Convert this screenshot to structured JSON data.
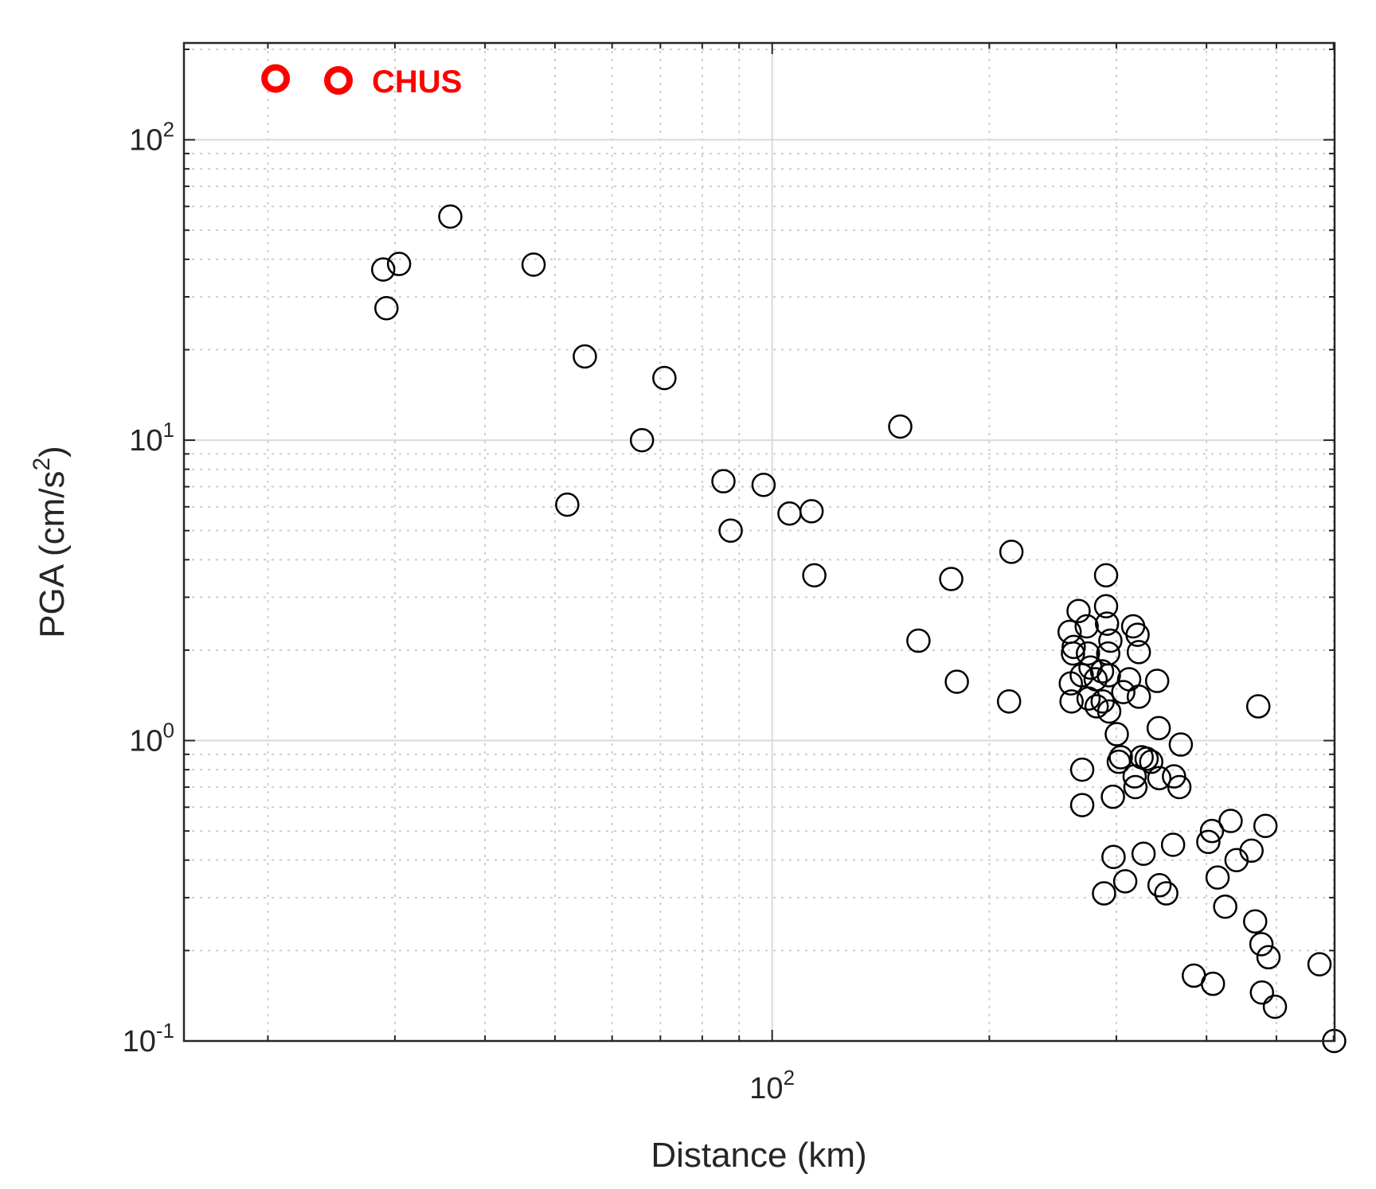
{
  "chart_data": {
    "type": "scatter",
    "title": "",
    "xlabel": "Distance (km)",
    "ylabel_main": "PGA (cm/s",
    "ylabel_exp": "2",
    "ylabel_close": ")",
    "xscale": "log",
    "yscale": "log",
    "xlim": [
      15.3,
      602
    ],
    "ylim": [
      0.1,
      210
    ],
    "grid": true,
    "legend": {
      "placement": "top-left"
    },
    "x_ticks": [
      {
        "base": "10",
        "exp": "2",
        "value": 100
      }
    ],
    "y_ticks": [
      {
        "base": "10",
        "exp": "2",
        "value": 100
      },
      {
        "base": "10",
        "exp": "1",
        "value": 10
      },
      {
        "base": "10",
        "exp": "0",
        "value": 1
      },
      {
        "base": "10",
        "exp": "-1",
        "value": 0.1
      }
    ],
    "series": [
      {
        "name": "CHUS",
        "color": "#ff0000",
        "marker": "circle-bold",
        "points": [
          [
            20.5,
            160
          ]
        ]
      },
      {
        "color": "#000000",
        "marker": "circle-open",
        "points": [
          [
            28.9,
            37
          ],
          [
            29.2,
            27.5
          ],
          [
            30.4,
            38.6
          ],
          [
            35.8,
            55.5
          ],
          [
            46.7,
            38.4
          ],
          [
            55.0,
            19
          ],
          [
            52.0,
            6.1
          ],
          [
            66.0,
            10
          ],
          [
            70.9,
            16.1
          ],
          [
            85.6,
            7.3
          ],
          [
            87.6,
            5
          ],
          [
            97.3,
            7.1
          ],
          [
            105.7,
            5.7
          ],
          [
            113.4,
            5.8
          ],
          [
            114.4,
            3.55
          ],
          [
            150.5,
            11.1
          ],
          [
            159.5,
            2.15
          ],
          [
            177.1,
            3.45
          ],
          [
            180.3,
            1.57
          ],
          [
            214.6,
            4.25
          ],
          [
            213.0,
            1.35
          ],
          [
            258.4,
            2.3
          ],
          [
            259.4,
            1.55
          ],
          [
            260,
            1.35
          ],
          [
            261.2,
            1.95
          ],
          [
            261.8,
            2.05
          ],
          [
            265.9,
            2.7
          ],
          [
            268.6,
            1.65
          ],
          [
            269.0,
            0.8
          ],
          [
            269.0,
            0.61
          ],
          [
            272.9,
            2.4
          ],
          [
            274.0,
            1.95
          ],
          [
            274.5,
            1.38
          ],
          [
            276.2,
            1.75
          ],
          [
            280.8,
            1.6
          ],
          [
            281.7,
            1.3
          ],
          [
            286.6,
            1.7
          ],
          [
            287.2,
            1.35
          ],
          [
            288.4,
            0.31
          ],
          [
            290.3,
            3.55
          ],
          [
            290.3,
            2.8
          ],
          [
            291.2,
            2.45
          ],
          [
            292.3,
            1.95
          ],
          [
            292.9,
            1.65
          ],
          [
            293.2,
            1.25
          ],
          [
            294.3,
            2.15
          ],
          [
            296.7,
            0.65
          ],
          [
            297.3,
            0.41
          ],
          [
            300.4,
            1.05
          ],
          [
            302.3,
            0.85
          ],
          [
            304.3,
            0.88
          ],
          [
            306.7,
            1.45
          ],
          [
            308.6,
            0.34
          ],
          [
            312.5,
            1.6
          ],
          [
            316.5,
            2.4
          ],
          [
            318.0,
            0.76
          ],
          [
            318.8,
            0.7
          ],
          [
            321.0,
            2.25
          ],
          [
            322.3,
            1.97
          ],
          [
            322.3,
            1.4
          ],
          [
            325.2,
            0.88
          ],
          [
            327.2,
            0.42
          ],
          [
            330.4,
            0.87
          ],
          [
            335.3,
            0.85
          ],
          [
            341.7,
            1.58
          ],
          [
            343.4,
            1.1
          ],
          [
            344.0,
            0.75
          ],
          [
            344.3,
            0.33
          ],
          [
            351.8,
            0.31
          ],
          [
            359.5,
            0.45
          ],
          [
            360.6,
            0.76
          ],
          [
            366.8,
            0.7
          ],
          [
            368.5,
            0.97
          ],
          [
            384.2,
            0.165
          ],
          [
            402.3,
            0.46
          ],
          [
            407.0,
            0.5
          ],
          [
            408.3,
            0.155
          ],
          [
            414.4,
            0.35
          ],
          [
            424.6,
            0.28
          ],
          [
            432.0,
            0.54
          ],
          [
            440.2,
            0.4
          ],
          [
            461.8,
            0.43
          ],
          [
            467.2,
            0.25
          ],
          [
            471.9,
            1.3
          ],
          [
            476.6,
            0.21
          ],
          [
            477.4,
            0.145
          ],
          [
            482.8,
            0.52
          ],
          [
            487.5,
            0.19
          ],
          [
            497.6,
            0.13
          ],
          [
            573.7,
            0.18
          ],
          [
            601.2,
            0.1
          ]
        ]
      }
    ]
  }
}
